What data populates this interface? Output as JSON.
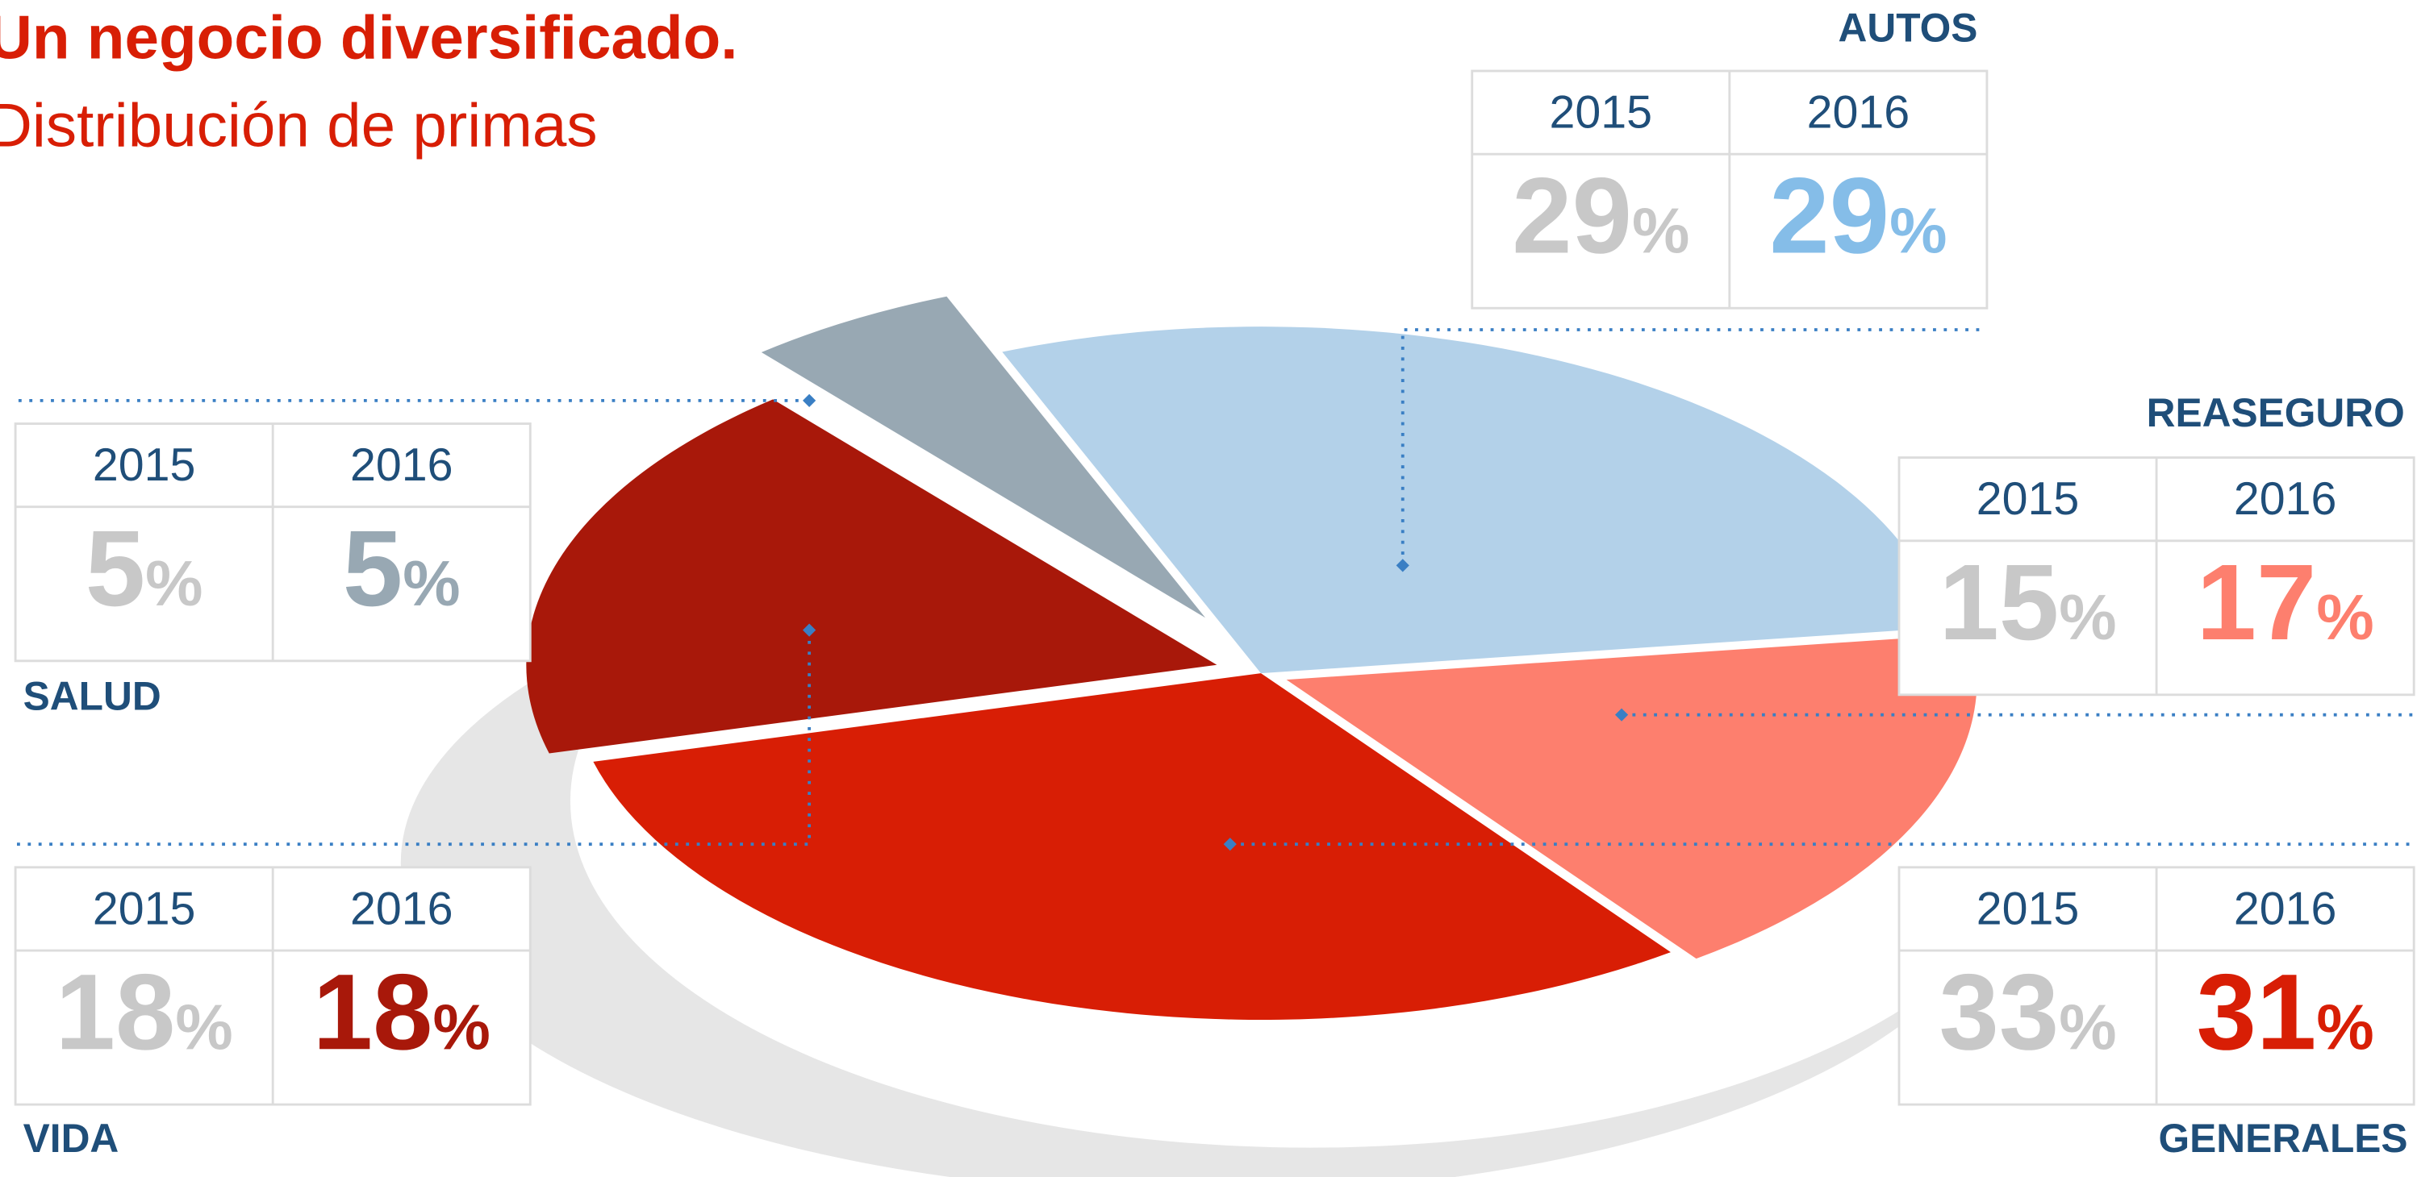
{
  "chart_data": {
    "type": "pie",
    "title": "Un negocio diversificado.",
    "subtitle": "Distribución de primas",
    "unit": "%",
    "categories": [
      "AUTOS",
      "REASEGURO",
      "GENERALES",
      "VIDA",
      "SALUD"
    ],
    "series": [
      {
        "name": "2015",
        "color": "#c8c8c8",
        "values": [
          29,
          15,
          33,
          18,
          5
        ]
      },
      {
        "name": "2016",
        "colors": [
          "#85bde8",
          "#fd7f6e",
          "#d81e05",
          "#a8180a",
          "#98a8b3"
        ],
        "slice_colors": [
          "#b3d1e9",
          "#fd7f6e",
          "#d81e05",
          "#a8180a",
          "#98a8b3"
        ],
        "values": [
          29,
          17,
          31,
          18,
          5
        ]
      }
    ]
  }
}
